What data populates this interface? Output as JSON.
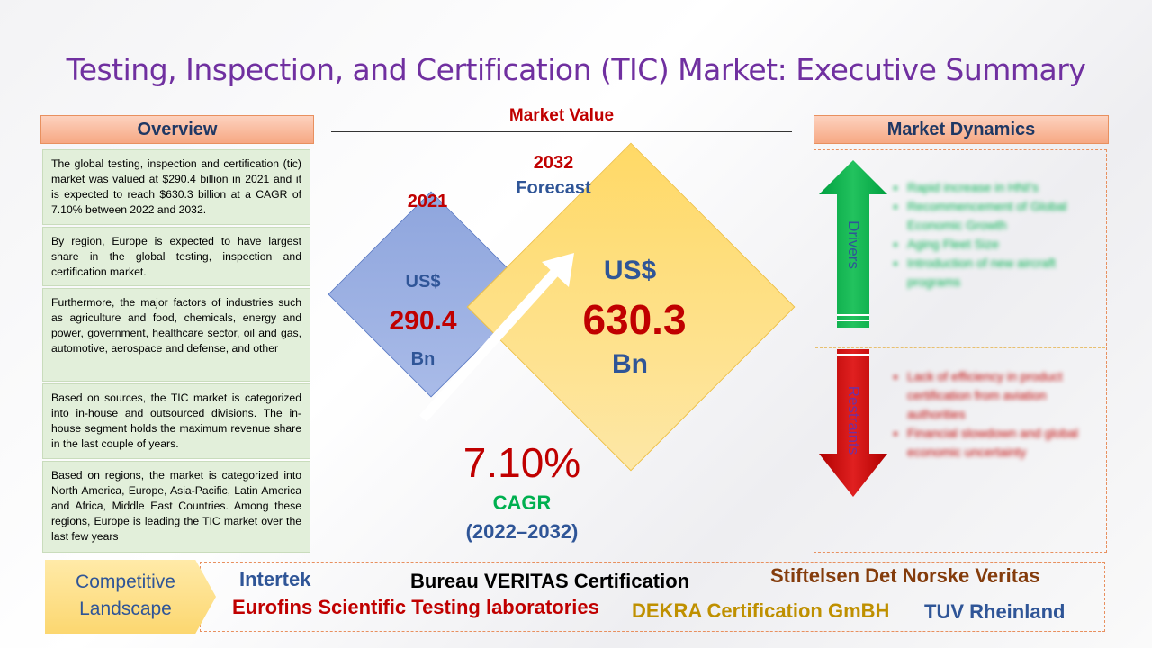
{
  "title": "Testing, Inspection, and Certification (TIC) Market: Executive Summary",
  "overview": {
    "header": "Overview",
    "paragraphs": [
      "The global testing, inspection and certification (tic) market was valued at $290.4 billion in 2021 and it is expected to reach $630.3 billion at a CAGR of 7.10% between 2022 and 2032.",
      "By region, Europe is expected to have largest share in the global testing, inspection and certification market.",
      "Furthermore, the major factors of industries such as agriculture and food, chemicals, energy and power, government, healthcare sector, oil and gas, automotive, aerospace and defense, and other",
      "Based on sources, the TIC market is categorized into in-house and outsourced divisions. The in-house segment holds the maximum revenue share in the last couple of years.",
      "Based on regions, the market is categorized into North America, Europe, Asia-Pacific, Latin America and Africa, Middle East Countries. Among these regions, Europe is leading the TIC market over the last few years"
    ]
  },
  "market_value": {
    "header": "Market Value",
    "year_start": "2021",
    "year_end": "2032",
    "forecast_label": "Forecast",
    "start": {
      "currency": "US$",
      "value": "290.4",
      "unit": "Bn"
    },
    "end": {
      "currency": "US$",
      "value": "630.3",
      "unit": "Bn"
    },
    "cagr_value": "7.10%",
    "cagr_label": "CAGR",
    "cagr_period": "(2022–2032)"
  },
  "market_dynamics": {
    "header": "Market Dynamics",
    "drivers_label": "Drivers",
    "drivers": [
      "Rapid increase in HNI's",
      "Recommencement of Global Economic Growth",
      "Aging Fleet Size",
      "Introduction of new aircraft programs"
    ],
    "restraints_label": "Restraints",
    "restraints": [
      "Lack of efficiency in product certification from aviation authorities",
      "Financial slowdown and global economic uncertainty"
    ],
    "colors": {
      "drivers": "#00b050",
      "restraints": "#c00000"
    }
  },
  "competitive_landscape": {
    "label": "Competitive Landscape",
    "companies": [
      "Intertek",
      "Bureau VERITAS Certification",
      "Stiftelsen Det Norske Veritas",
      "Eurofins Scientific Testing laboratories",
      "DEKRA Certification GmBH",
      "TUV Rheinland"
    ]
  }
}
